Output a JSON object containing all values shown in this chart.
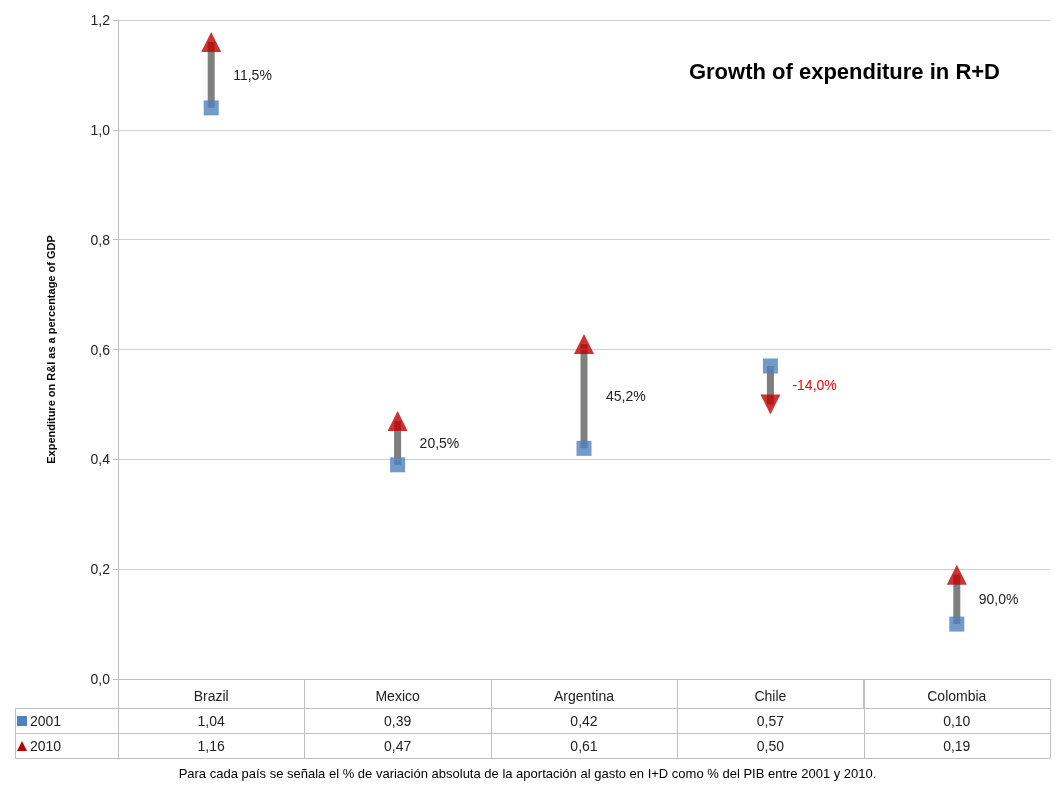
{
  "chart_data": {
    "type": "scatter",
    "title": "Growth of expenditure in R+D",
    "ylabel": "Expenditure on R&I as a percentage of GDP",
    "categories": [
      "Brazil",
      "Mexico",
      "Argentina",
      "Chile",
      "Colombia"
    ],
    "series": [
      {
        "name": "2001",
        "color": "#4f81bd",
        "marker": "square",
        "values": [
          1.04,
          0.39,
          0.42,
          0.57,
          0.1
        ],
        "value_labels": [
          "1,04",
          "0,39",
          "0,42",
          "0,57",
          "0,10"
        ]
      },
      {
        "name": "2010",
        "color": "#c00000",
        "marker": "triangle",
        "values": [
          1.16,
          0.47,
          0.61,
          0.5,
          0.19
        ],
        "value_labels": [
          "1,16",
          "0,47",
          "0,61",
          "0,50",
          "0,19"
        ]
      }
    ],
    "ylim": [
      0,
      1.2
    ],
    "yticks": [
      {
        "value": 0,
        "label": "0,0"
      },
      {
        "value": 0.2,
        "label": "0,2"
      },
      {
        "value": 0.4,
        "label": "0,4"
      },
      {
        "value": 0.6,
        "label": "0,6"
      },
      {
        "value": 0.8,
        "label": "0,8"
      },
      {
        "value": 1.0,
        "label": "1,0"
      },
      {
        "value": 1.2,
        "label": "1,2"
      }
    ],
    "grid": "y",
    "legend": "bottom left",
    "annotations": [
      "11,5%",
      "20,5%",
      "45,2%",
      "-14,0%",
      "90,0%",
      "Para cada país se señala el % de variación absoluta de la aportación al gasto en I+D como % del PIB entre 2001 y 2010."
    ]
  }
}
